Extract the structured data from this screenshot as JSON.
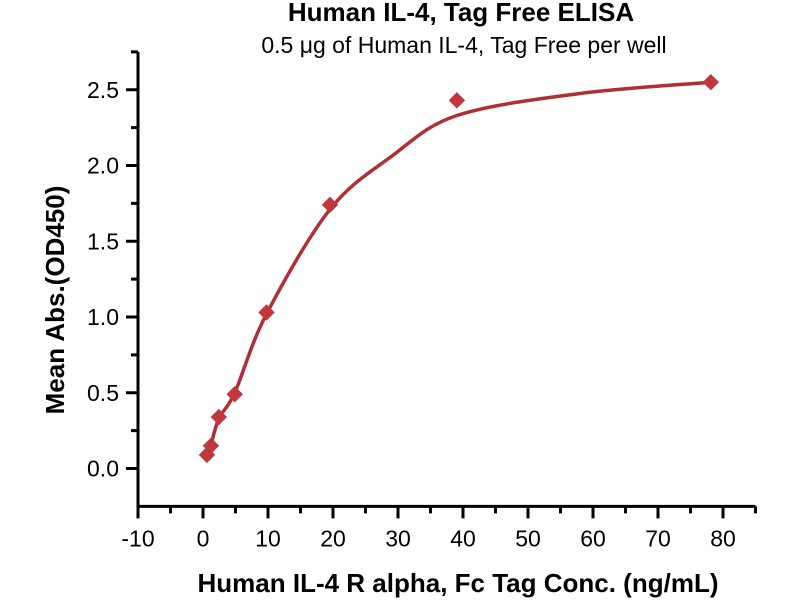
{
  "page": {
    "background_color": "#ffffff"
  },
  "chart_data": {
    "type": "scatter",
    "title": "Human IL-4, Tag Free ELISA",
    "subtitle": "0.5 μg of Human IL-4, Tag Free per well",
    "xlabel": "Human IL-4 R alpha, Fc Tag Conc. (ng/mL)",
    "ylabel": "Mean Abs.(OD450)",
    "marker_shape": "diamond",
    "points": [
      [
        0.61,
        0.09
      ],
      [
        1.22,
        0.15
      ],
      [
        2.44,
        0.34
      ],
      [
        4.88,
        0.49
      ],
      [
        9.77,
        1.03
      ],
      [
        19.53,
        1.74
      ],
      [
        39.06,
        2.43
      ],
      [
        78.13,
        2.55
      ]
    ],
    "fit_curve": [
      [
        0.61,
        0.085
      ],
      [
        1.22,
        0.155
      ],
      [
        2.44,
        0.33
      ],
      [
        4.88,
        0.5
      ],
      [
        9.77,
        1.02
      ],
      [
        19.53,
        1.71
      ],
      [
        29.0,
        2.06
      ],
      [
        39.06,
        2.33
      ],
      [
        58.0,
        2.475
      ],
      [
        78.13,
        2.55
      ]
    ],
    "xlim": [
      -10,
      85
    ],
    "ylim": [
      -0.25,
      2.75
    ],
    "x_major_ticks": [
      -10,
      0,
      10,
      20,
      30,
      40,
      50,
      60,
      70,
      80
    ],
    "x_minor_step": 5,
    "y_major_tick_labels": [
      "0.0",
      "0.5",
      "1.0",
      "1.5",
      "2.0",
      "2.5"
    ],
    "y_minor_step": 0.25,
    "grid": false,
    "legend": null,
    "colors": {
      "curve": "#B02F35",
      "marker": "#C0383D",
      "axis": "#000000",
      "text": "#000000"
    }
  }
}
